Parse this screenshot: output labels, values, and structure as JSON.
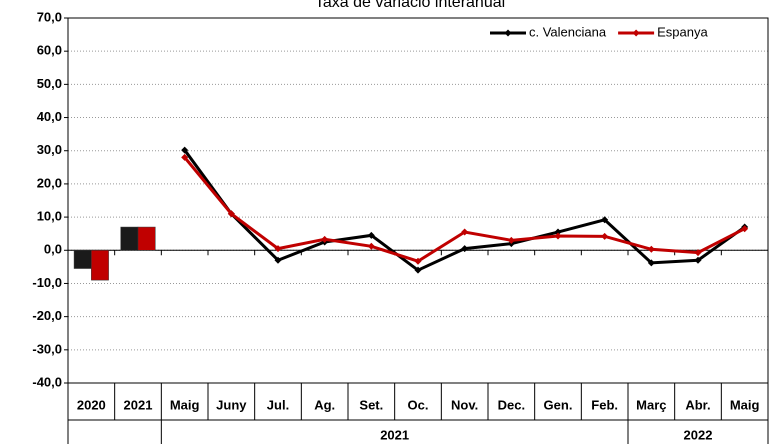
{
  "chart_data": {
    "type": "combo",
    "title": "Taxa de variació interanual",
    "categories": [
      "2020",
      "2021",
      "Maig",
      "Juny",
      "Jul.",
      "Ag.",
      "Set.",
      "Oc.",
      "Nov.",
      "Dec.",
      "Gen.",
      "Feb.",
      "Març",
      "Abr.",
      "Maig"
    ],
    "mark_types": [
      "bar",
      "bar",
      "line",
      "line",
      "line",
      "line",
      "line",
      "line",
      "line",
      "line",
      "line",
      "line",
      "line",
      "line",
      "line"
    ],
    "groups": [
      {
        "label": "2021",
        "start": 2,
        "end": 11
      },
      {
        "label": "2022",
        "start": 12,
        "end": 14
      }
    ],
    "series": [
      {
        "name": "c. Valenciana",
        "color": "#000000",
        "bar_color": "#1a1a1a",
        "values": [
          -5.5,
          7,
          30.2,
          11,
          -3,
          2.5,
          4.5,
          -6,
          0.5,
          2,
          5.5,
          9.2,
          -3.8,
          -3,
          7
        ]
      },
      {
        "name": "Espanya",
        "color": "#c00000",
        "bar_color": "#c00000",
        "values": [
          -9,
          7,
          28,
          11,
          0.5,
          3.3,
          1.2,
          -3.3,
          5.5,
          3,
          4.3,
          4.2,
          0.3,
          -0.7,
          6.5
        ]
      }
    ],
    "ylim": [
      -40,
      70
    ],
    "yticks": [
      {
        "value": -40,
        "label": "-40,0"
      },
      {
        "value": -30,
        "label": "-30,0"
      },
      {
        "value": -20,
        "label": "-20,0"
      },
      {
        "value": -10,
        "label": "-10,0"
      },
      {
        "value": 0,
        "label": "0,0"
      },
      {
        "value": 10,
        "label": "10,0"
      },
      {
        "value": 20,
        "label": "20,0"
      },
      {
        "value": 30,
        "label": "30,0"
      },
      {
        "value": 40,
        "label": "40,0"
      },
      {
        "value": 50,
        "label": "50,0"
      },
      {
        "value": 60,
        "label": "60,0"
      },
      {
        "value": 70,
        "label": "70,0"
      }
    ],
    "grid": true,
    "legend": "top-right"
  }
}
